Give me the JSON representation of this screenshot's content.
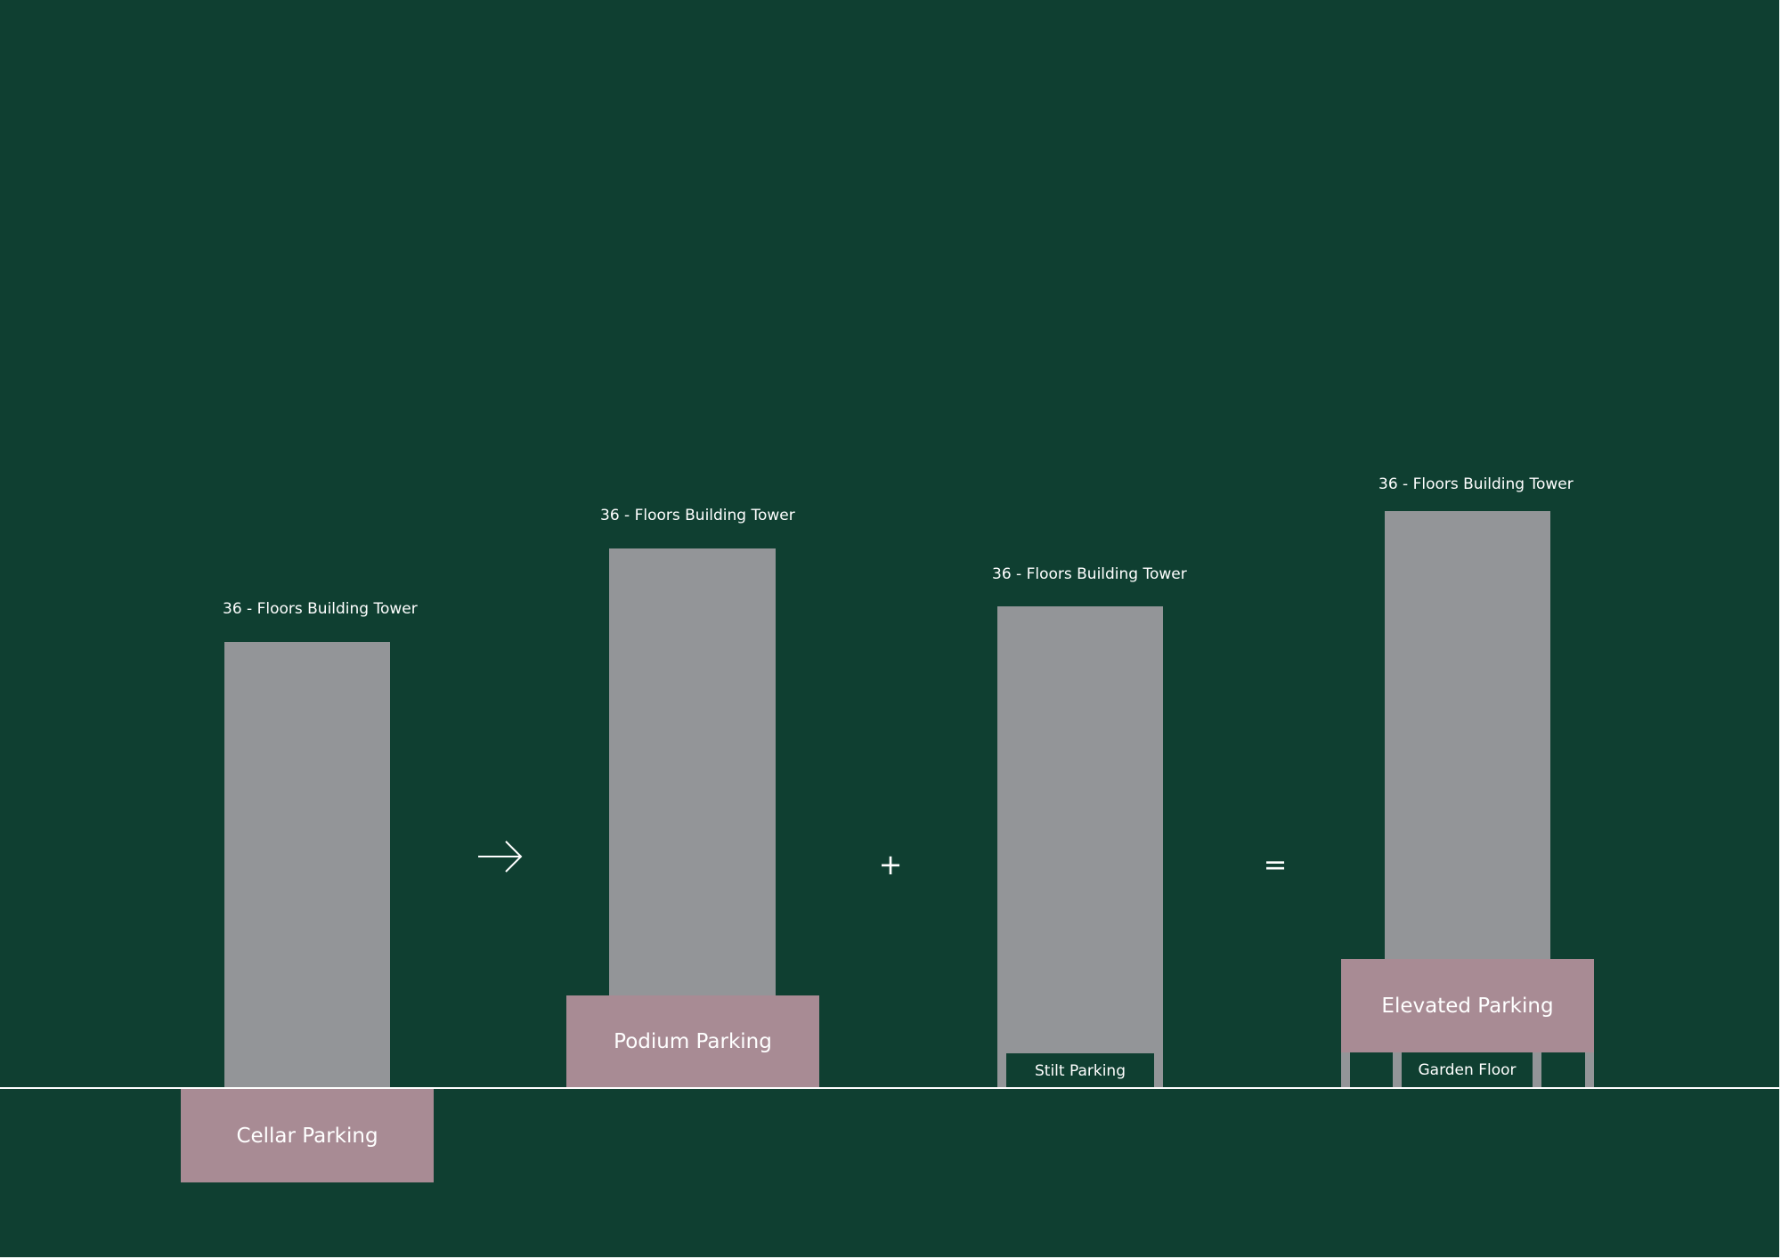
{
  "colors": {
    "background": "#0f3f31",
    "tower": "#939598",
    "parking_block": "#a88b94",
    "text": "#ffffff"
  },
  "panels": [
    {
      "tower_label": "36 - Floors Building Tower",
      "parking_label": "Cellar Parking"
    },
    {
      "tower_label": "36 - Floors Building Tower",
      "parking_label": "Podium Parking"
    },
    {
      "tower_label": "36 - Floors Building Tower",
      "parking_label": "Stilt Parking"
    },
    {
      "tower_label": "36 - Floors Building Tower",
      "parking_label": "Elevated Parking",
      "garden_label": "Garden Floor"
    }
  ],
  "operators": {
    "plus": "+",
    "equals": "="
  },
  "icons": {
    "arrow": "arrow-right-icon"
  }
}
